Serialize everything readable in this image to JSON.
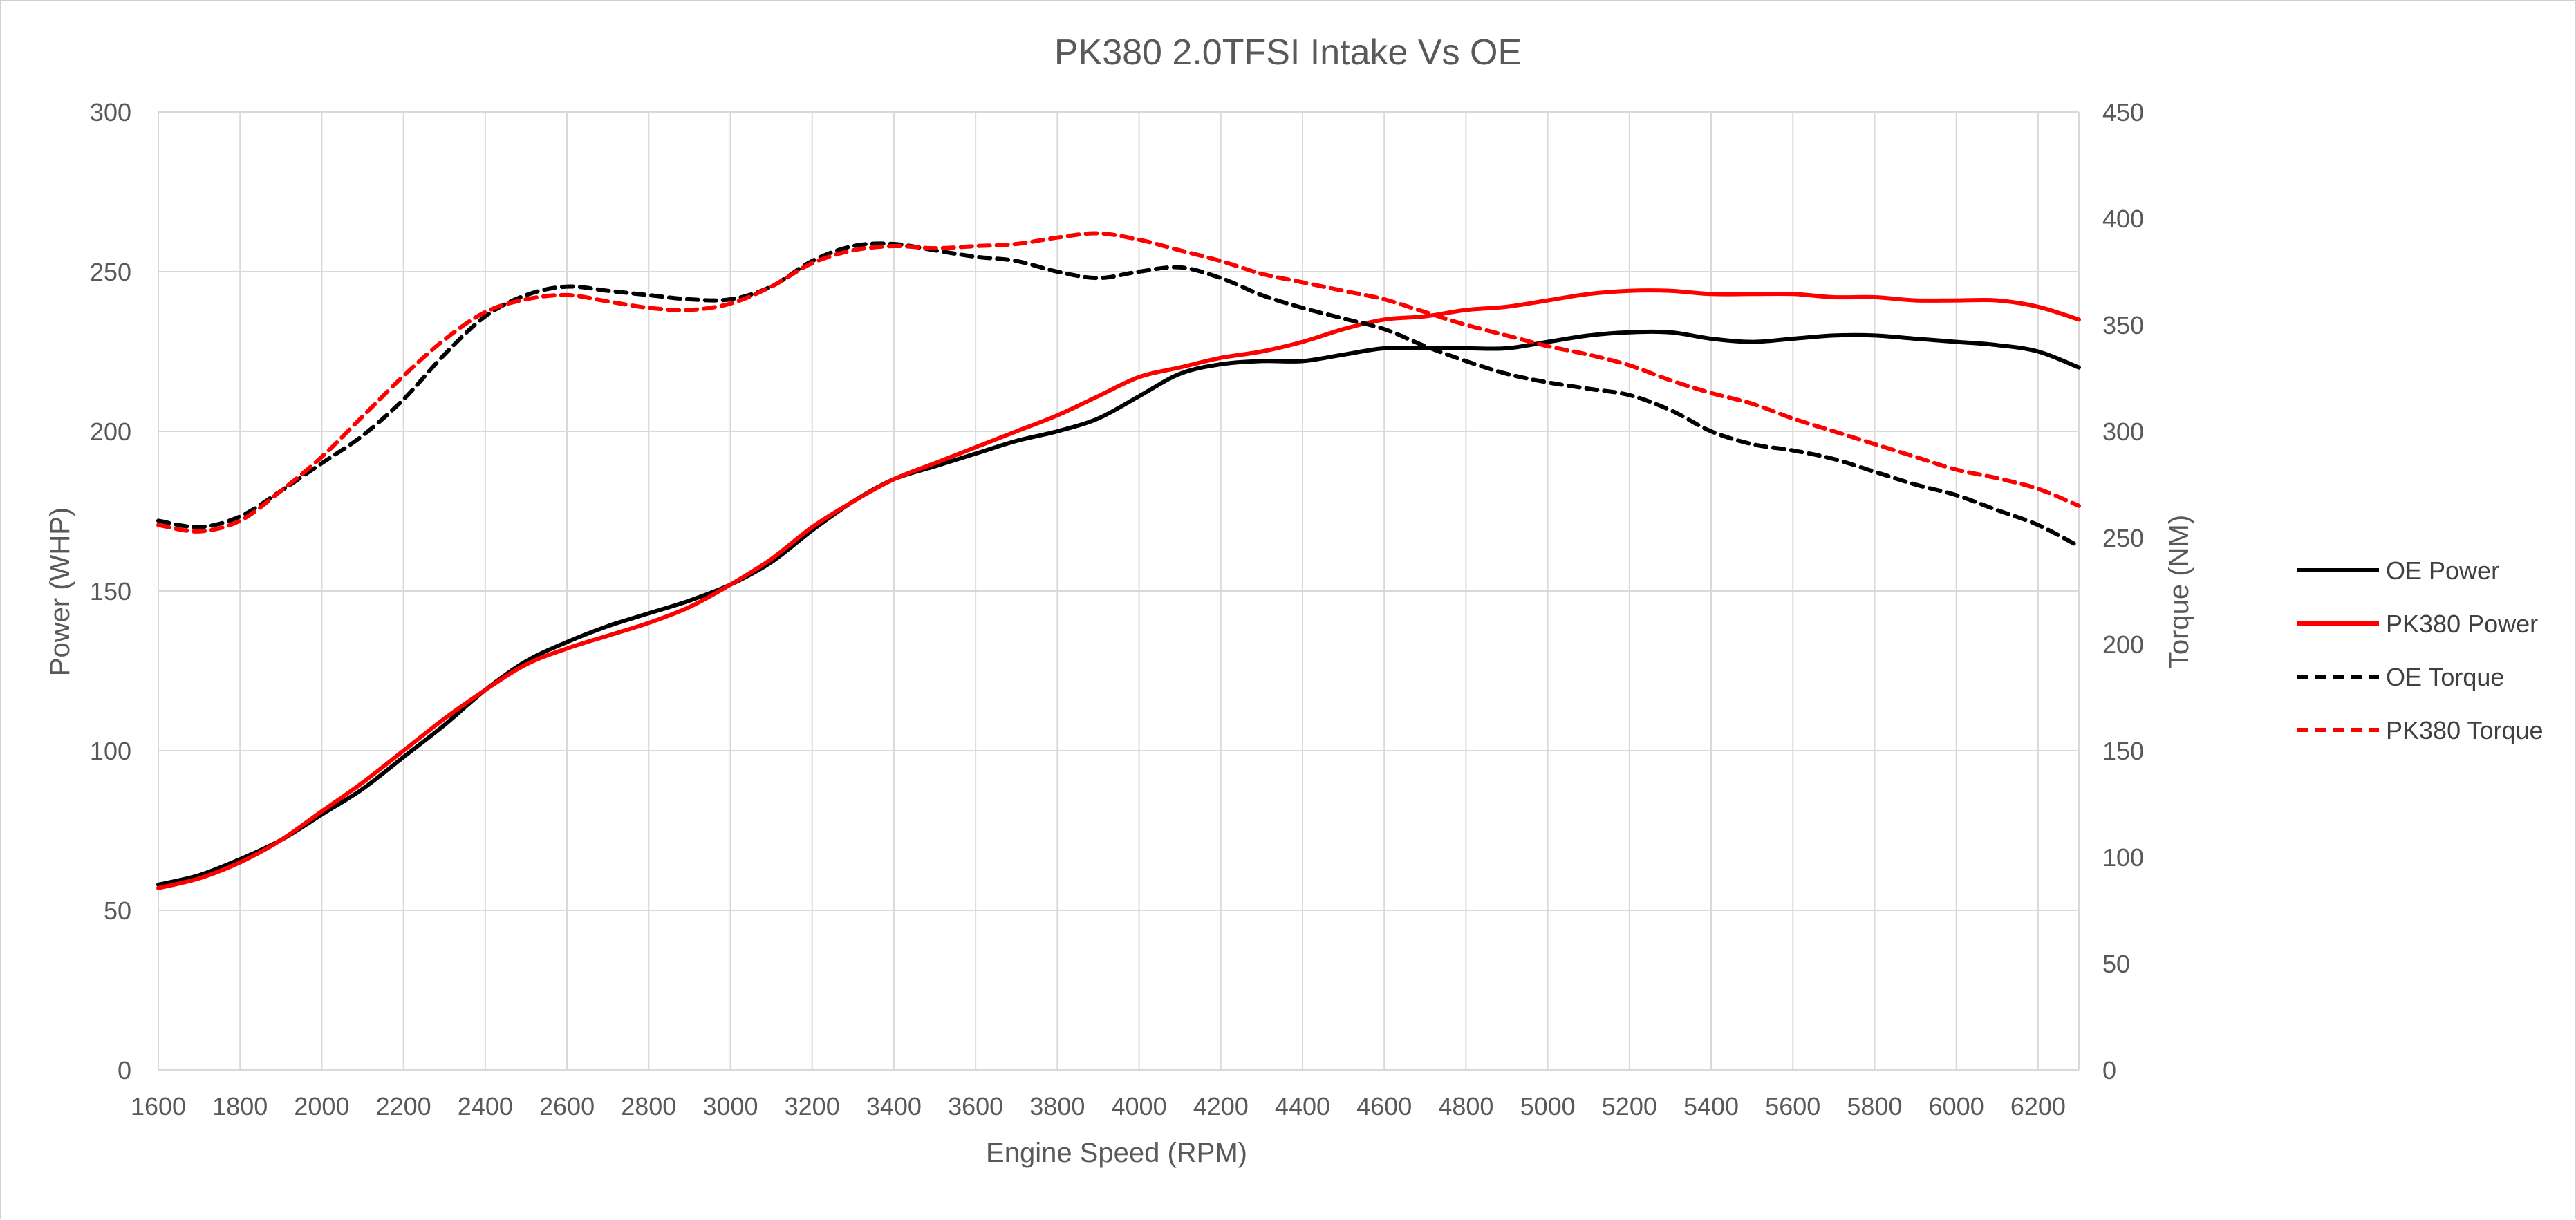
{
  "chart_data": {
    "type": "line",
    "title": "PK380 2.0TFSI Intake Vs OE",
    "xlabel": "Engine Speed (RPM)",
    "ylabel": "Power (WHP)",
    "y2label": "Torque (NM)",
    "xlim": [
      1600,
      6300
    ],
    "ylim": [
      0,
      300
    ],
    "y2lim": [
      0,
      450
    ],
    "x_ticks": [
      "1600",
      "1800",
      "2000",
      "2200",
      "2400",
      "2600",
      "2800",
      "3000",
      "3200",
      "3400",
      "3600",
      "3800",
      "4000",
      "4200",
      "4400",
      "4600",
      "4800",
      "5000",
      "5200",
      "5400",
      "5600",
      "5800",
      "6000",
      "6200"
    ],
    "y_ticks": [
      "0",
      "50",
      "100",
      "150",
      "200",
      "250",
      "300"
    ],
    "y2_ticks": [
      "0",
      "50",
      "100",
      "150",
      "200",
      "250",
      "300",
      "350",
      "400",
      "450"
    ],
    "grid": true,
    "legend_position": "right",
    "x": [
      1600,
      1700,
      1800,
      1900,
      2000,
      2100,
      2200,
      2300,
      2400,
      2500,
      2600,
      2700,
      2800,
      2900,
      3000,
      3100,
      3200,
      3300,
      3400,
      3500,
      3600,
      3700,
      3800,
      3900,
      4000,
      4100,
      4200,
      4300,
      4400,
      4500,
      4600,
      4700,
      4800,
      4900,
      5000,
      5100,
      5200,
      5300,
      5400,
      5500,
      5600,
      5700,
      5800,
      5900,
      6000,
      6100,
      6200,
      6300
    ],
    "series": [
      {
        "name": "OE Power",
        "axis": "left",
        "color": "#000000",
        "dash": "solid",
        "values": [
          58,
          61,
          66,
          72,
          80,
          88,
          98,
          108,
          119,
          128,
          134,
          139,
          143,
          147,
          152,
          159,
          169,
          178,
          185,
          189,
          193,
          197,
          200,
          204,
          211,
          218,
          221,
          222,
          222,
          224,
          226,
          226,
          226,
          226,
          228,
          230,
          231,
          231,
          229,
          228,
          229,
          230,
          230,
          229,
          228,
          227,
          225,
          220
        ]
      },
      {
        "name": "PK380 Power",
        "axis": "left",
        "color": "#ff0000",
        "dash": "solid",
        "values": [
          57,
          60,
          65,
          72,
          81,
          90,
          100,
          110,
          119,
          127,
          132,
          136,
          140,
          145,
          152,
          160,
          170,
          178,
          185,
          190,
          195,
          200,
          205,
          211,
          217,
          220,
          223,
          225,
          228,
          232,
          235,
          236,
          238,
          239,
          241,
          243,
          244,
          244,
          243,
          243,
          243,
          242,
          242,
          241,
          241,
          241,
          239,
          235
        ]
      },
      {
        "name": "OE Torque",
        "axis": "right",
        "color": "#000000",
        "dash": "dashed",
        "values": [
          258,
          255,
          260,
          272,
          285,
          298,
          315,
          336,
          354,
          364,
          368,
          366,
          364,
          362,
          362,
          368,
          380,
          387,
          388,
          385,
          382,
          380,
          375,
          372,
          375,
          377,
          372,
          364,
          358,
          353,
          348,
          340,
          333,
          327,
          323,
          320,
          317,
          310,
          300,
          294,
          291,
          287,
          281,
          275,
          270,
          263,
          256,
          246
        ]
      },
      {
        "name": "PK380 Torque",
        "axis": "right",
        "color": "#ff0000",
        "dash": "dashed",
        "values": [
          256,
          253,
          258,
          272,
          288,
          307,
          326,
          343,
          356,
          362,
          364,
          361,
          358,
          357,
          360,
          368,
          379,
          385,
          387,
          386,
          387,
          388,
          391,
          393,
          390,
          385,
          380,
          374,
          370,
          366,
          362,
          356,
          350,
          345,
          340,
          336,
          331,
          324,
          318,
          313,
          306,
          300,
          294,
          288,
          282,
          278,
          273,
          265
        ]
      }
    ]
  }
}
